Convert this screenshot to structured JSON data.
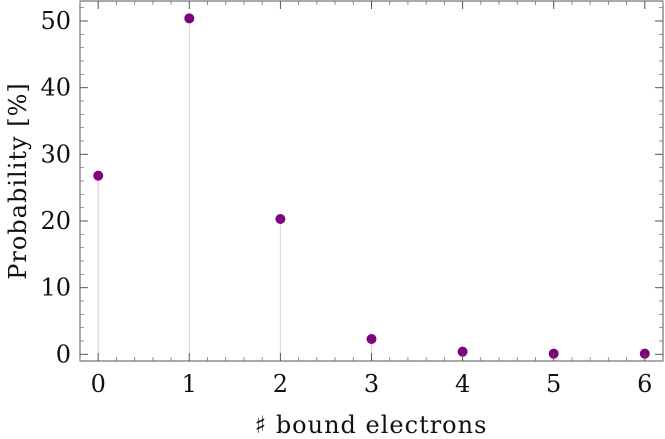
{
  "chart_data": {
    "type": "scatter",
    "style": "stem",
    "xlabel": "♯ bound electrons",
    "ylabel": "Probability [%]",
    "x": [
      0,
      1,
      2,
      3,
      4,
      5,
      6
    ],
    "y": [
      26.8,
      50.4,
      20.3,
      2.3,
      0.4,
      0.1,
      0.1
    ],
    "xlim": [
      -0.2,
      6.2
    ],
    "ylim": [
      -1,
      53
    ],
    "x_ticks": [
      "0",
      "1",
      "2",
      "3",
      "4",
      "5",
      "6"
    ],
    "y_ticks": [
      "0",
      "10",
      "20",
      "30",
      "40",
      "50"
    ],
    "marker_color": "#800080",
    "stem_color": "#e6cfe6",
    "grid": false,
    "legend": "none"
  }
}
